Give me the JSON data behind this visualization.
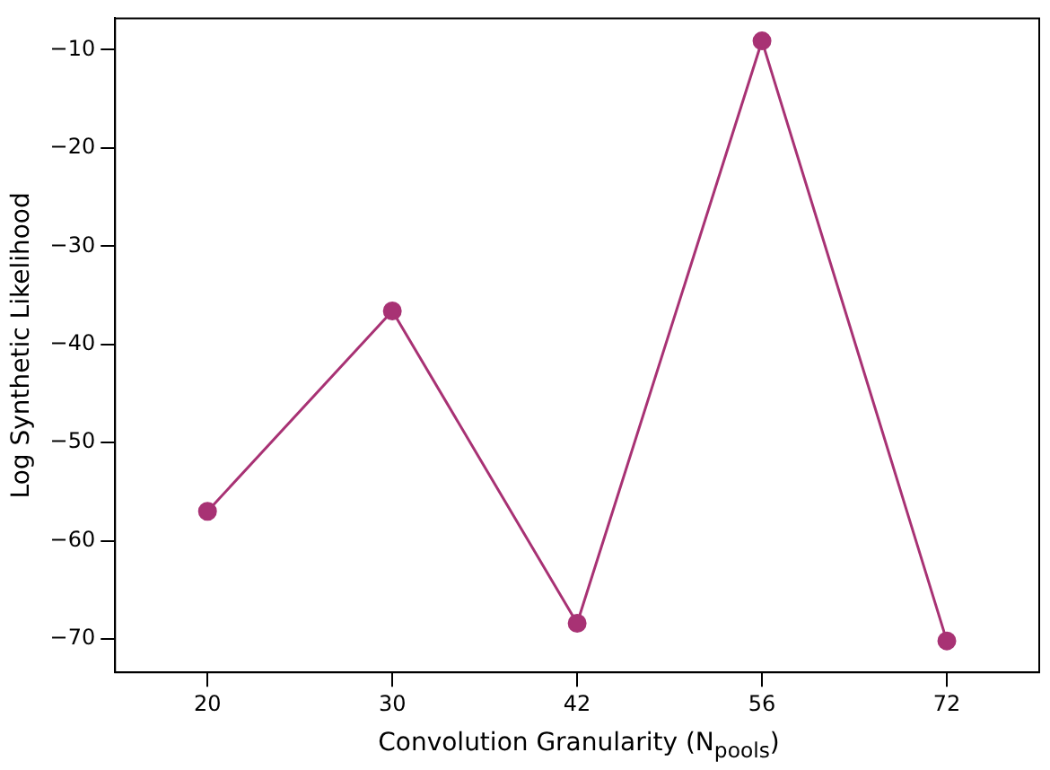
{
  "chart_data": {
    "type": "line",
    "xlabel": "Convolution Granularity (N$_{pools}$)",
    "ylabel": "Log Synthetic Likelihood",
    "categories": [
      "20",
      "30",
      "42",
      "56",
      "72"
    ],
    "series": [
      {
        "color": "#a83274",
        "values": [
          -57.0,
          -36.6,
          -68.4,
          -9.1,
          -70.2
        ]
      }
    ],
    "ylim": [
      -73.4,
      -6.8
    ],
    "yticks": [
      -70,
      -60,
      -50,
      -40,
      -30,
      -20,
      -10
    ],
    "marker": "circle",
    "line_style": "solid",
    "grid": false,
    "legend": false
  }
}
